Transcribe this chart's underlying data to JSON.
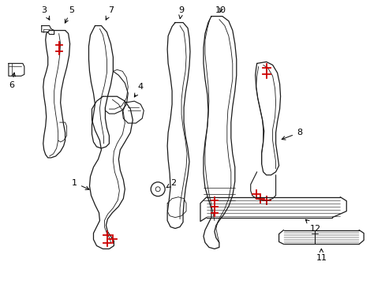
{
  "background_color": "#ffffff",
  "line_color": "#1a1a1a",
  "red_color": "#cc0000",
  "label_color": "#000000",
  "fig_width": 4.89,
  "fig_height": 3.6,
  "dpi": 100
}
